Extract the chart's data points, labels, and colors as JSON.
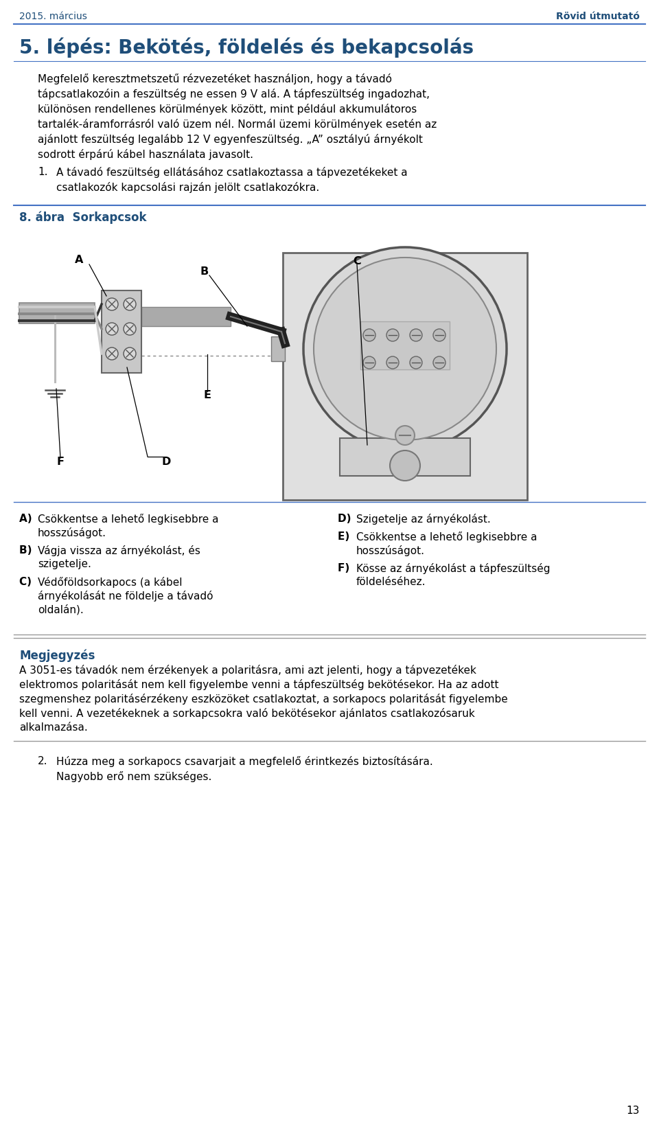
{
  "bg_color": "#ffffff",
  "header_left": "2015. március",
  "header_right": "Rövid útmutató",
  "header_color": "#1f4e79",
  "header_line_color": "#4472c4",
  "title": "5. lépés: Bekötés, földelés és bekapcsolás",
  "title_color": "#1f4e79",
  "body_lines": [
    "Megfelelő keresztmetszetű rézvezetéket használjon, hogy a távadó",
    "tápcsatlakozóin a feszültség ne essen 9 V alá. A tápfeszültség ingadozhat,",
    "különösen rendellenes körülmények között, mint például akkumulátoros",
    "tartalék-áramforrásról való üzem nél. Normál üzemi körülmények esetén az",
    "ajánlott feszültség legalább 12 V egyenfeszültség. „A” osztályú árnyékolt",
    "sodrott érpárú kábel használata javasolt."
  ],
  "list1_a": "A távadó feszültség ellátásához csatlakoztassa a tápvezetékeket a",
  "list1_b": "csatlakozók kapcsolási rajzán jelölt csatlakozókra.",
  "figure_title": "8. ábra  Sorkapcsok",
  "figure_title_color": "#1f4e79",
  "figure_section_line_color": "#4472c4",
  "cap_left": [
    [
      "A) ",
      "Csökkentse a lehető legkisebbre a",
      "hosszúságot."
    ],
    [
      "B) ",
      "Vágja vissza az árnyékolást, és",
      "szigetelje."
    ],
    [
      "C) ",
      "Védőföldsorkapocs (a kábel",
      "árnyékolását ne földelje a távadó",
      "oldalán)."
    ]
  ],
  "cap_right": [
    [
      "D) ",
      "Szigetelje az árnyékolást."
    ],
    [
      "E) ",
      "Csökkentse a lehető legkisebbre a",
      "hosszúságot."
    ],
    [
      "F) ",
      "Kösse az árnyékolást a tápfeszültség",
      "földeléséhez."
    ]
  ],
  "note_title": "Megjegyzés",
  "note_title_color": "#1f4e79",
  "note_lines": [
    "A 3051-es távadók nem érzékenyek a polaritásra, ami azt jelenti, hogy a tápvezetékek",
    "elektromos polaritását nem kell figyelembe venni a tápfeszültség bekötésekor. Ha az adott",
    "szegmenshez polaritásérzékeny eszközöket csatlakoztat, a sorkapocs polaritását figyelembe",
    "kell venni. A vezetékeknek a sorkapcsokra való bekötésekor ajánlatos csatlakozósaruk",
    "alkalmazása."
  ],
  "list2_a": "Húzza meg a sorkapocs csavarjait a megfelelő érintkezés biztosítására.",
  "list2_b": "Nagyobb erő nem szükséges.",
  "page_number": "13",
  "text_color": "#000000",
  "line_color_sep": "#999999",
  "line_color_fig": "#4472c4"
}
